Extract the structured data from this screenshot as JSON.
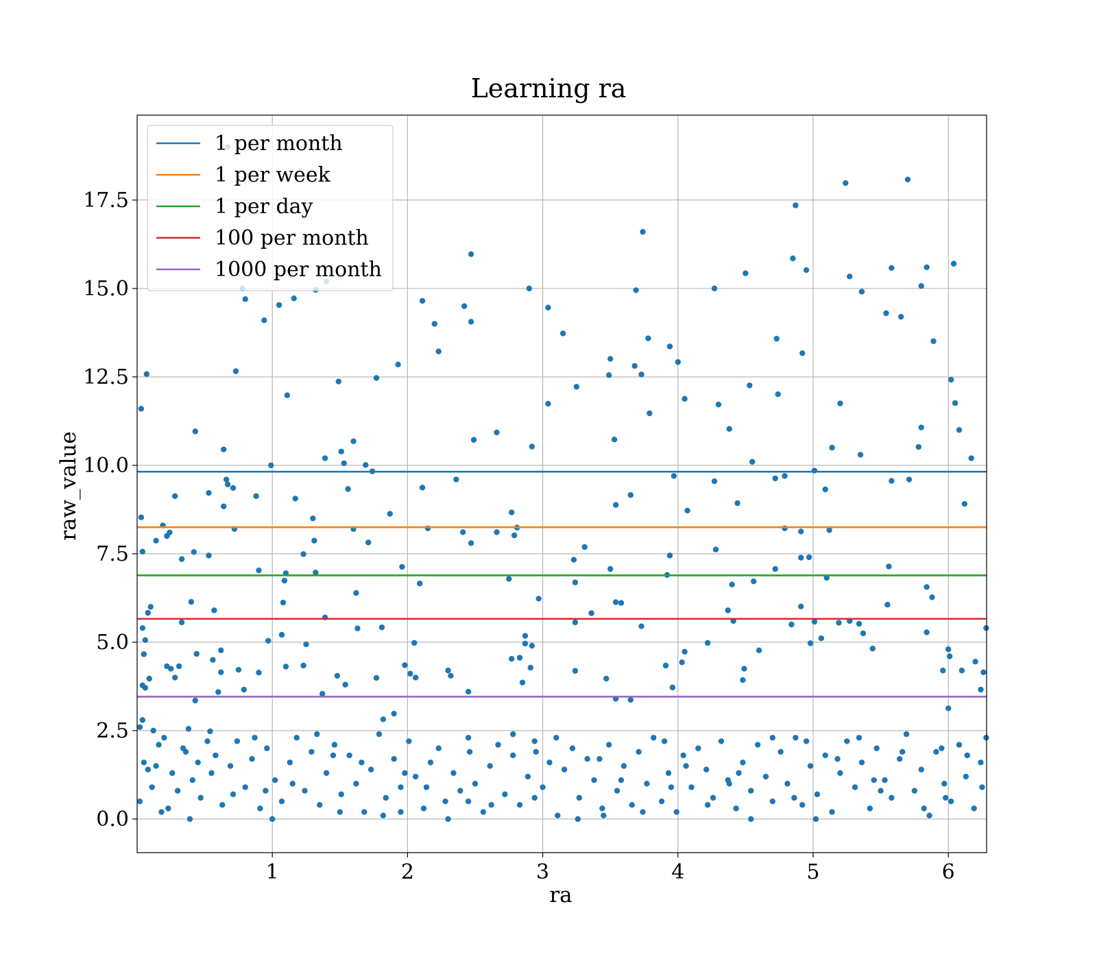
{
  "chart_data": {
    "type": "scatter",
    "title": "Learning ra",
    "xlabel": "ra",
    "ylabel": "raw_value",
    "xlim": [
      0,
      6.2832
    ],
    "ylim": [
      -0.95,
      19.9
    ],
    "xticks": [
      1,
      2,
      3,
      4,
      5,
      6
    ],
    "xtick_labels": [
      "1",
      "2",
      "3",
      "4",
      "5",
      "6"
    ],
    "yticks": [
      0,
      2.5,
      5,
      7.5,
      10,
      12.5,
      15,
      17.5
    ],
    "ytick_labels": [
      "0.0",
      "2.5",
      "5.0",
      "7.5",
      "10.0",
      "12.5",
      "15.0",
      "17.5"
    ],
    "grid": true,
    "legend_position": "top-left",
    "point_color": "#1f77b4",
    "hlines": [
      {
        "name": "1 per month",
        "y": 9.82,
        "color": "#1f77b4"
      },
      {
        "name": "1 per week",
        "y": 8.25,
        "color": "#ff7f0e"
      },
      {
        "name": "1 per day",
        "y": 6.89,
        "color": "#2ca02c"
      },
      {
        "name": "100 per month",
        "y": 5.66,
        "color": "#d62728"
      },
      {
        "name": "1000 per month",
        "y": 3.46,
        "color": "#9467bd"
      }
    ],
    "points": [
      [
        0.03,
        11.6
      ],
      [
        0.07,
        12.58
      ],
      [
        0.03,
        8.53
      ],
      [
        0.04,
        7.56
      ],
      [
        0.08,
        5.83
      ],
      [
        0.1,
        6.0
      ],
      [
        0.04,
        5.4
      ],
      [
        0.06,
        5.06
      ],
      [
        0.05,
        4.66
      ],
      [
        0.09,
        3.97
      ],
      [
        0.04,
        3.78
      ],
      [
        0.06,
        3.71
      ],
      [
        0.02,
        2.6
      ],
      [
        0.04,
        2.8
      ],
      [
        0.14,
        7.87
      ],
      [
        0.19,
        8.3
      ],
      [
        0.24,
        8.1
      ],
      [
        0.28,
        9.13
      ],
      [
        0.33,
        7.35
      ],
      [
        0.33,
        5.56
      ],
      [
        0.22,
        8.0
      ],
      [
        0.4,
        6.14
      ],
      [
        0.42,
        7.55
      ],
      [
        0.43,
        10.96
      ],
      [
        0.53,
        7.45
      ],
      [
        0.53,
        9.22
      ],
      [
        0.57,
        5.9
      ],
      [
        0.56,
        4.5
      ],
      [
        0.62,
        4.77
      ],
      [
        0.66,
        9.6
      ],
      [
        0.67,
        9.46
      ],
      [
        0.64,
        10.45
      ],
      [
        0.64,
        8.84
      ],
      [
        0.67,
        19.0
      ],
      [
        0.71,
        9.36
      ],
      [
        0.73,
        12.66
      ],
      [
        0.72,
        8.2
      ],
      [
        0.78,
        15.0
      ],
      [
        0.8,
        14.7
      ],
      [
        0.88,
        9.13
      ],
      [
        0.9,
        7.03
      ],
      [
        0.94,
        14.1
      ],
      [
        0.99,
        10.0
      ],
      [
        1.05,
        14.53
      ],
      [
        1.11,
        11.98
      ],
      [
        1.16,
        14.72
      ],
      [
        1.17,
        9.06
      ],
      [
        1.08,
        6.12
      ],
      [
        1.09,
        6.74
      ],
      [
        1.1,
        6.95
      ],
      [
        1.23,
        7.49
      ],
      [
        1.3,
        8.5
      ],
      [
        1.31,
        7.87
      ],
      [
        1.32,
        6.97
      ],
      [
        1.32,
        14.96
      ],
      [
        1.4,
        15.2
      ],
      [
        1.39,
        10.2
      ],
      [
        1.49,
        12.37
      ],
      [
        1.51,
        10.39
      ],
      [
        1.53,
        10.06
      ],
      [
        1.56,
        9.33
      ],
      [
        1.6,
        10.68
      ],
      [
        1.6,
        8.2
      ],
      [
        1.69,
        10.01
      ],
      [
        1.74,
        9.83
      ],
      [
        1.77,
        12.47
      ],
      [
        1.71,
        7.82
      ],
      [
        1.81,
        5.42
      ],
      [
        1.93,
        12.85
      ],
      [
        1.87,
        8.63
      ],
      [
        1.96,
        7.13
      ],
      [
        2.11,
        14.65
      ],
      [
        2.11,
        9.37
      ],
      [
        2.15,
        8.22
      ],
      [
        2.2,
        14.0
      ],
      [
        2.23,
        13.22
      ],
      [
        2.36,
        9.6
      ],
      [
        2.42,
        14.5
      ],
      [
        2.47,
        15.97
      ],
      [
        2.47,
        14.06
      ],
      [
        2.49,
        10.72
      ],
      [
        2.41,
        8.11
      ],
      [
        2.47,
        7.8
      ],
      [
        2.66,
        10.93
      ],
      [
        2.66,
        8.11
      ],
      [
        2.77,
        8.67
      ],
      [
        2.79,
        8.02
      ],
      [
        2.81,
        8.24
      ],
      [
        2.9,
        15.0
      ],
      [
        2.92,
        10.53
      ],
      [
        3.04,
        14.46
      ],
      [
        3.04,
        11.74
      ],
      [
        3.15,
        13.73
      ],
      [
        3.25,
        12.22
      ],
      [
        3.23,
        7.33
      ],
      [
        3.31,
        7.69
      ],
      [
        3.5,
        13.01
      ],
      [
        3.49,
        12.55
      ],
      [
        3.53,
        10.73
      ],
      [
        3.54,
        8.88
      ],
      [
        3.5,
        7.07
      ],
      [
        3.54,
        6.13
      ],
      [
        3.58,
        6.11
      ],
      [
        3.69,
        14.95
      ],
      [
        3.73,
        12.57
      ],
      [
        3.74,
        16.6
      ],
      [
        3.78,
        13.59
      ],
      [
        3.79,
        11.47
      ],
      [
        3.65,
        9.16
      ],
      [
        3.68,
        12.81
      ],
      [
        3.94,
        13.36
      ],
      [
        4.0,
        12.92
      ],
      [
        4.05,
        11.88
      ],
      [
        3.97,
        9.7
      ],
      [
        4.07,
        8.72
      ],
      [
        3.94,
        7.45
      ],
      [
        4.27,
        9.55
      ],
      [
        4.28,
        7.62
      ],
      [
        4.27,
        15.0
      ],
      [
        4.3,
        11.72
      ],
      [
        4.38,
        11.03
      ],
      [
        4.44,
        8.93
      ],
      [
        4.5,
        15.43
      ],
      [
        4.53,
        12.26
      ],
      [
        4.55,
        10.1
      ],
      [
        4.73,
        13.58
      ],
      [
        4.74,
        12.01
      ],
      [
        4.72,
        9.63
      ],
      [
        4.79,
        9.7
      ],
      [
        4.79,
        8.22
      ],
      [
        4.85,
        15.85
      ],
      [
        4.87,
        17.35
      ],
      [
        4.92,
        13.17
      ],
      [
        4.95,
        15.52
      ],
      [
        4.91,
        8.13
      ],
      [
        5.01,
        9.85
      ],
      [
        5.09,
        9.32
      ],
      [
        5.12,
        8.17
      ],
      [
        5.14,
        10.5
      ],
      [
        5.2,
        11.75
      ],
      [
        5.24,
        17.98
      ],
      [
        5.27,
        15.34
      ],
      [
        5.36,
        14.91
      ],
      [
        5.35,
        10.3
      ],
      [
        5.54,
        14.3
      ],
      [
        5.58,
        15.58
      ],
      [
        5.58,
        9.56
      ],
      [
        5.65,
        14.2
      ],
      [
        5.7,
        18.08
      ],
      [
        5.71,
        9.6
      ],
      [
        5.8,
        15.07
      ],
      [
        5.84,
        15.6
      ],
      [
        5.8,
        11.07
      ],
      [
        5.78,
        10.52
      ],
      [
        5.89,
        13.51
      ],
      [
        6.02,
        12.42
      ],
      [
        6.04,
        15.7
      ],
      [
        6.05,
        11.76
      ],
      [
        6.08,
        11.0
      ],
      [
        6.17,
        10.2
      ],
      [
        6.12,
        8.91
      ],
      [
        5.84,
        6.56
      ],
      [
        5.88,
        6.27
      ],
      [
        5.84,
        5.28
      ],
      [
        5.96,
        4.2
      ],
      [
        6.0,
        4.8
      ],
      [
        6.01,
        4.6
      ],
      [
        6.1,
        4.2
      ],
      [
        6.2,
        4.45
      ],
      [
        6.26,
        4.15
      ],
      [
        6.28,
        5.4
      ],
      [
        6.24,
        3.66
      ],
      [
        6.0,
        3.13
      ],
      [
        5.55,
        6.06
      ],
      [
        5.56,
        7.14
      ],
      [
        5.44,
        4.82
      ],
      [
        5.37,
        5.25
      ],
      [
        5.34,
        5.52
      ],
      [
        5.27,
        5.6
      ],
      [
        5.19,
        5.55
      ],
      [
        5.06,
        5.11
      ],
      [
        5.01,
        5.58
      ],
      [
        4.98,
        4.97
      ],
      [
        4.91,
        6.01
      ],
      [
        4.91,
        7.39
      ],
      [
        4.97,
        7.4
      ],
      [
        5.1,
        6.82
      ],
      [
        4.84,
        5.5
      ],
      [
        4.72,
        7.07
      ],
      [
        4.56,
        6.72
      ],
      [
        4.4,
        6.63
      ],
      [
        4.37,
        5.9
      ],
      [
        4.41,
        5.6
      ],
      [
        4.49,
        4.25
      ],
      [
        4.48,
        3.93
      ],
      [
        4.6,
        4.77
      ],
      [
        4.22,
        4.98
      ],
      [
        4.03,
        4.43
      ],
      [
        4.05,
        4.73
      ],
      [
        3.96,
        3.72
      ],
      [
        3.91,
        4.34
      ],
      [
        3.92,
        6.9
      ],
      [
        3.73,
        5.45
      ],
      [
        3.65,
        3.37
      ],
      [
        3.54,
        3.4
      ],
      [
        3.47,
        3.97
      ],
      [
        3.36,
        5.82
      ],
      [
        3.24,
        6.69
      ],
      [
        3.24,
        5.56
      ],
      [
        3.24,
        4.19
      ],
      [
        2.97,
        6.23
      ],
      [
        2.92,
        4.9
      ],
      [
        2.91,
        4.28
      ],
      [
        2.87,
        5.18
      ],
      [
        2.87,
        4.96
      ],
      [
        2.85,
        3.86
      ],
      [
        2.75,
        6.79
      ],
      [
        2.77,
        4.53
      ],
      [
        2.83,
        4.56
      ],
      [
        2.45,
        3.6
      ],
      [
        2.3,
        4.2
      ],
      [
        2.32,
        4.05
      ],
      [
        2.09,
        6.66
      ],
      [
        1.98,
        4.35
      ],
      [
        2.02,
        4.11
      ],
      [
        2.06,
        4.0
      ],
      [
        2.05,
        4.98
      ],
      [
        1.9,
        2.98
      ],
      [
        1.82,
        2.82
      ],
      [
        1.77,
        3.99
      ],
      [
        1.62,
        6.39
      ],
      [
        1.63,
        5.39
      ],
      [
        1.54,
        3.8
      ],
      [
        1.48,
        4.05
      ],
      [
        1.37,
        3.54
      ],
      [
        1.39,
        5.7
      ],
      [
        1.25,
        4.94
      ],
      [
        1.23,
        4.34
      ],
      [
        1.1,
        4.31
      ],
      [
        1.07,
        5.21
      ],
      [
        0.97,
        5.04
      ],
      [
        0.9,
        4.14
      ],
      [
        0.79,
        3.66
      ],
      [
        0.75,
        4.22
      ],
      [
        0.62,
        4.15
      ],
      [
        0.6,
        3.59
      ],
      [
        0.54,
        2.48
      ],
      [
        0.44,
        4.67
      ],
      [
        0.43,
        3.35
      ],
      [
        0.38,
        2.55
      ],
      [
        0.31,
        4.32
      ],
      [
        0.28,
        4.0
      ],
      [
        0.25,
        4.25
      ],
      [
        0.22,
        4.32
      ],
      [
        0.34,
        2.0
      ],
      [
        0.16,
        2.1
      ],
      [
        0.12,
        2.5
      ],
      [
        0.08,
        1.4
      ],
      [
        0.05,
        1.6
      ],
      [
        0.02,
        0.5
      ],
      [
        0.14,
        1.5
      ],
      [
        0.2,
        2.3
      ],
      [
        0.26,
        1.3
      ],
      [
        0.3,
        0.8
      ],
      [
        0.36,
        1.9
      ],
      [
        0.41,
        1.1
      ],
      [
        0.47,
        0.6
      ],
      [
        0.52,
        2.2
      ],
      [
        0.58,
        1.8
      ],
      [
        0.63,
        0.4
      ],
      [
        0.69,
        1.5
      ],
      [
        0.74,
        2.2
      ],
      [
        0.8,
        0.9
      ],
      [
        0.85,
        1.7
      ],
      [
        0.91,
        0.3
      ],
      [
        0.96,
        2.0
      ],
      [
        1.02,
        1.1
      ],
      [
        1.07,
        0.5
      ],
      [
        1.13,
        1.6
      ],
      [
        1.18,
        2.3
      ],
      [
        1.24,
        0.8
      ],
      [
        1.29,
        1.9
      ],
      [
        1.35,
        0.4
      ],
      [
        1.4,
        1.3
      ],
      [
        1.46,
        2.1
      ],
      [
        1.51,
        0.7
      ],
      [
        1.57,
        1.8
      ],
      [
        1.62,
        1.0
      ],
      [
        1.68,
        0.2
      ],
      [
        1.73,
        1.4
      ],
      [
        1.79,
        2.4
      ],
      [
        1.84,
        0.6
      ],
      [
        1.9,
        1.7
      ],
      [
        1.95,
        0.9
      ],
      [
        2.01,
        2.2
      ],
      [
        2.06,
        1.2
      ],
      [
        2.12,
        0.3
      ],
      [
        2.17,
        1.6
      ],
      [
        2.23,
        2.0
      ],
      [
        2.28,
        0.5
      ],
      [
        2.34,
        1.3
      ],
      [
        2.39,
        0.8
      ],
      [
        2.45,
        2.3
      ],
      [
        2.5,
        1.0
      ],
      [
        2.56,
        0.2
      ],
      [
        2.61,
        1.5
      ],
      [
        2.67,
        2.1
      ],
      [
        2.72,
        0.7
      ],
      [
        2.78,
        1.8
      ],
      [
        2.83,
        0.4
      ],
      [
        2.89,
        1.2
      ],
      [
        2.94,
        2.2
      ],
      [
        3.0,
        0.9
      ],
      [
        3.05,
        1.6
      ],
      [
        3.11,
        0.1
      ],
      [
        3.16,
        1.4
      ],
      [
        3.22,
        2.0
      ],
      [
        3.27,
        0.6
      ],
      [
        3.33,
        1.7
      ],
      [
        3.38,
        1.1
      ],
      [
        3.44,
        0.3
      ],
      [
        3.49,
        2.1
      ],
      [
        3.55,
        0.8
      ],
      [
        3.6,
        1.5
      ],
      [
        3.66,
        0.4
      ],
      [
        3.71,
        1.9
      ],
      [
        3.77,
        1.0
      ],
      [
        3.82,
        2.3
      ],
      [
        3.88,
        0.5
      ],
      [
        3.93,
        1.3
      ],
      [
        3.99,
        0.2
      ],
      [
        4.04,
        1.8
      ],
      [
        4.1,
        0.9
      ],
      [
        4.15,
        2.0
      ],
      [
        4.21,
        1.4
      ],
      [
        4.26,
        0.6
      ],
      [
        4.32,
        2.2
      ],
      [
        4.37,
        1.1
      ],
      [
        4.43,
        0.3
      ],
      [
        4.48,
        1.6
      ],
      [
        4.54,
        0.8
      ],
      [
        4.59,
        2.1
      ],
      [
        4.65,
        1.2
      ],
      [
        4.7,
        0.5
      ],
      [
        4.76,
        1.9
      ],
      [
        4.81,
        1.0
      ],
      [
        4.87,
        2.3
      ],
      [
        4.92,
        0.4
      ],
      [
        4.98,
        1.5
      ],
      [
        5.03,
        0.7
      ],
      [
        5.09,
        1.8
      ],
      [
        5.14,
        0.2
      ],
      [
        5.2,
        1.3
      ],
      [
        5.25,
        2.2
      ],
      [
        5.31,
        0.9
      ],
      [
        5.36,
        1.6
      ],
      [
        5.42,
        0.3
      ],
      [
        5.47,
        2.0
      ],
      [
        5.53,
        1.1
      ],
      [
        5.58,
        0.6
      ],
      [
        5.64,
        1.7
      ],
      [
        5.69,
        2.4
      ],
      [
        5.75,
        0.8
      ],
      [
        5.8,
        1.4
      ],
      [
        5.86,
        0.1
      ],
      [
        5.91,
        1.9
      ],
      [
        5.97,
        1.0
      ],
      [
        6.02,
        0.5
      ],
      [
        6.08,
        2.1
      ],
      [
        6.13,
        1.2
      ],
      [
        6.19,
        0.3
      ],
      [
        6.24,
        1.6
      ],
      [
        6.28,
        2.3
      ],
      [
        0.11,
        0.9
      ],
      [
        0.23,
        0.3
      ],
      [
        0.39,
        0.0
      ],
      [
        0.55,
        1.3
      ],
      [
        0.71,
        0.7
      ],
      [
        0.87,
        2.3
      ],
      [
        1.0,
        0.0
      ],
      [
        1.15,
        1.0
      ],
      [
        1.33,
        2.4
      ],
      [
        1.5,
        0.2
      ],
      [
        1.66,
        1.6
      ],
      [
        1.82,
        0.1
      ],
      [
        1.98,
        1.3
      ],
      [
        2.14,
        0.9
      ],
      [
        2.3,
        0.0
      ],
      [
        2.46,
        1.9
      ],
      [
        2.62,
        0.4
      ],
      [
        2.78,
        2.4
      ],
      [
        2.94,
        0.6
      ],
      [
        3.1,
        2.3
      ],
      [
        3.26,
        0.0
      ],
      [
        3.42,
        1.7
      ],
      [
        3.58,
        1.1
      ],
      [
        3.74,
        0.2
      ],
      [
        3.9,
        2.2
      ],
      [
        4.06,
        1.5
      ],
      [
        4.22,
        0.4
      ],
      [
        4.38,
        1.0
      ],
      [
        4.54,
        0.0
      ],
      [
        4.7,
        2.3
      ],
      [
        4.86,
        0.6
      ],
      [
        5.02,
        0.0
      ],
      [
        5.18,
        1.7
      ],
      [
        5.34,
        2.3
      ],
      [
        5.5,
        0.8
      ],
      [
        5.66,
        1.9
      ],
      [
        5.82,
        0.3
      ],
      [
        5.98,
        0.6
      ],
      [
        6.14,
        1.8
      ],
      [
        0.18,
        0.2
      ],
      [
        0.45,
        1.6
      ],
      [
        0.95,
        0.8
      ],
      [
        1.45,
        1.8
      ],
      [
        1.95,
        0.2
      ],
      [
        2.45,
        0.5
      ],
      [
        2.95,
        1.9
      ],
      [
        3.45,
        0.1
      ],
      [
        3.95,
        0.9
      ],
      [
        4.45,
        1.3
      ],
      [
        4.95,
        2.2
      ],
      [
        5.45,
        1.1
      ],
      [
        5.95,
        2.0
      ],
      [
        6.25,
        0.9
      ]
    ]
  }
}
